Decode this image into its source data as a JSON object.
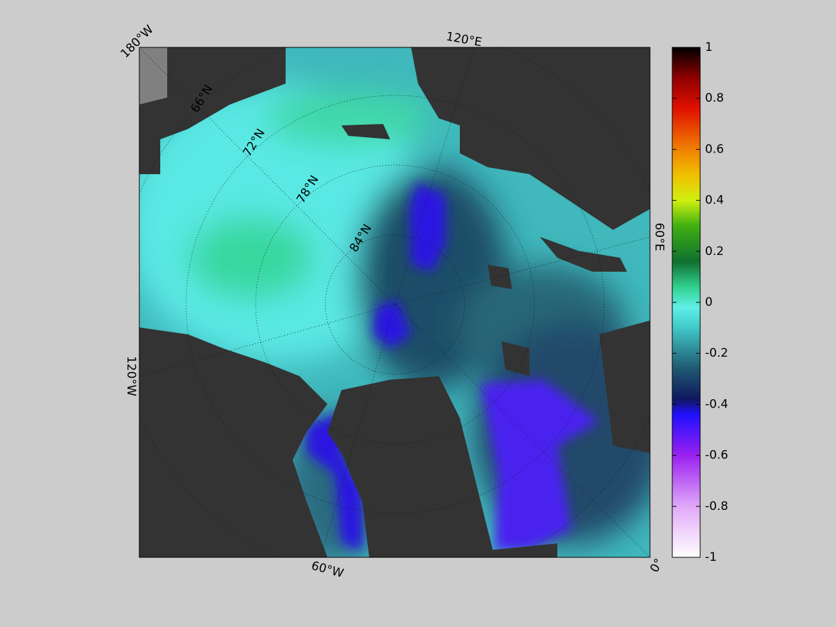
{
  "map": {
    "lon_labels": [
      "180°W",
      "120°E",
      "60°E",
      "0°",
      "60°W",
      "120°W"
    ],
    "lat_labels": [
      "66°N",
      "72°N",
      "78°N",
      "84°N"
    ]
  },
  "colorbar": {
    "lim": [
      -1,
      1
    ],
    "ticks": [
      1,
      0.8,
      0.6,
      0.4,
      0.2,
      0,
      -0.2,
      -0.4,
      -0.6,
      -0.8,
      -1
    ]
  }
}
